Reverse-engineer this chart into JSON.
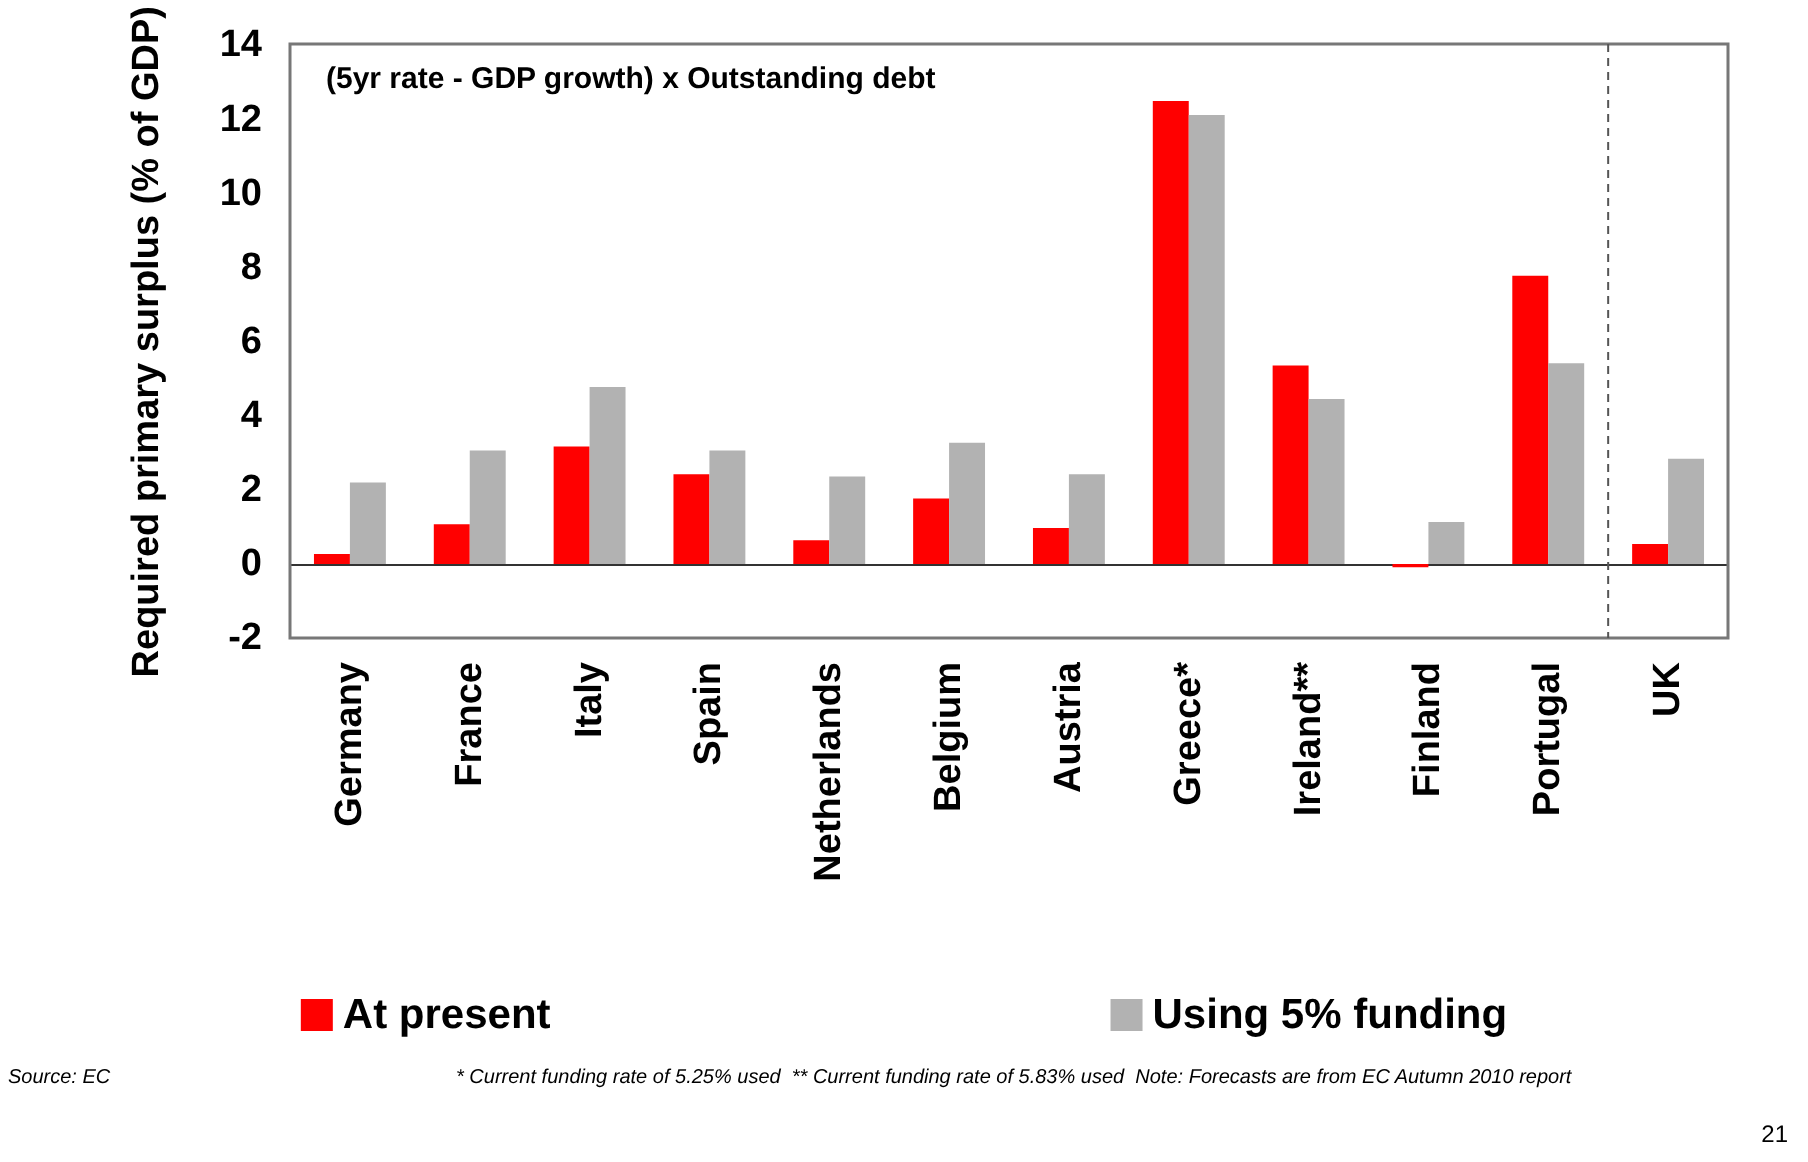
{
  "chart_data": {
    "type": "bar",
    "title": "(5yr rate - GDP growth) x Outstanding debt",
    "ylabel": "Required primary surplus (% of GDP)",
    "categories": [
      "Germany",
      "France",
      "Italy",
      "Spain",
      "Netherlands",
      "Belgium",
      "Austria",
      "Greece*",
      "Ireland**",
      "Finland",
      "Portugal",
      "UK"
    ],
    "series": [
      {
        "name": "At present",
        "color": "#ff0000",
        "values": [
          0.27,
          1.07,
          3.17,
          2.42,
          0.64,
          1.77,
          0.97,
          12.5,
          5.36,
          -0.09,
          7.78,
          0.54
        ]
      },
      {
        "name": "Using 5% funding",
        "color": "#b2b2b2",
        "values": [
          2.2,
          3.06,
          4.78,
          3.06,
          2.36,
          3.27,
          2.42,
          12.12,
          4.45,
          1.13,
          5.42,
          2.84
        ]
      }
    ],
    "ylim": [
      -2,
      14
    ],
    "yticks": [
      -2,
      0,
      2,
      4,
      6,
      8,
      10,
      12,
      14
    ],
    "grid": false,
    "legend": "bottom",
    "ref_lines": [
      {
        "axis": "x",
        "value": "UK",
        "line_style": "dashed",
        "color": "#555555"
      }
    ],
    "annotations": [
      "Source: EC",
      "* Current funding rate of 5.25% used  ** Current funding rate of 5.83% used  Note: Forecasts are from EC Autumn 2010 report",
      "21"
    ]
  }
}
